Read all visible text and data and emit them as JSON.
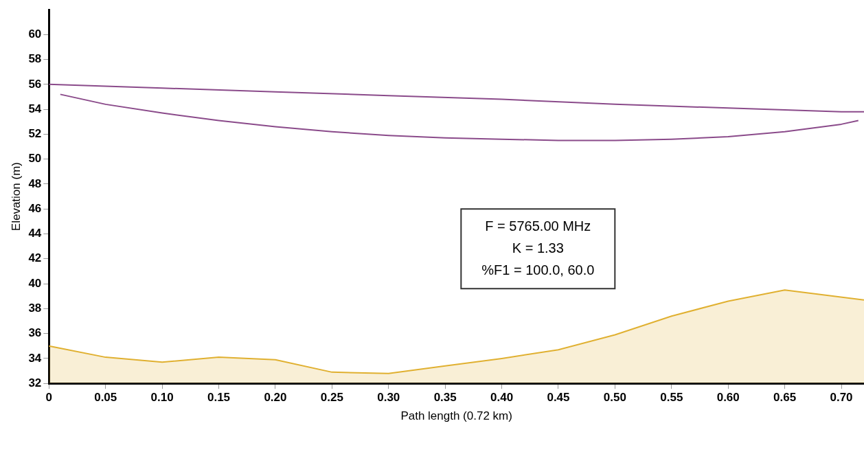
{
  "chart_data": {
    "type": "line",
    "xlabel": "Path length (0.72 km)",
    "ylabel": "Elevation (m)",
    "xlim": [
      0,
      0.72
    ],
    "ylim": [
      32,
      62
    ],
    "xticks": [
      0,
      {
        "value": 0.05,
        "label": "0.05"
      },
      {
        "value": 0.1,
        "label": "0.10"
      },
      {
        "value": 0.15,
        "label": "0.15"
      },
      {
        "value": 0.2,
        "label": "0.20"
      },
      {
        "value": 0.25,
        "label": "0.25"
      },
      {
        "value": 0.3,
        "label": "0.30"
      },
      {
        "value": 0.35,
        "label": "0.35"
      },
      {
        "value": 0.4,
        "label": "0.40"
      },
      {
        "value": 0.45,
        "label": "0.45"
      },
      {
        "value": 0.5,
        "label": "0.50"
      },
      {
        "value": 0.55,
        "label": "0.55"
      },
      {
        "value": 0.6,
        "label": "0.60"
      },
      {
        "value": 0.65,
        "label": "0.65"
      },
      {
        "value": 0.7,
        "label": "0.70"
      }
    ],
    "yticks": [
      32,
      34,
      36,
      38,
      40,
      42,
      44,
      46,
      48,
      50,
      52,
      54,
      56,
      58,
      60
    ],
    "grid": false,
    "legend": false,
    "marker": "none",
    "annotations": [
      "F = 5765.00 MHz",
      "K = 1.33",
      "%F1 = 100.0, 60.0"
    ],
    "series": [
      {
        "type": "line",
        "color": "#8a4a8a",
        "x": [
          0,
          0.1,
          0.2,
          0.3,
          0.4,
          0.5,
          0.6,
          0.7,
          0.72
        ],
        "values": [
          56.0,
          55.7,
          55.4,
          55.1,
          54.8,
          54.4,
          54.1,
          53.8,
          53.8
        ]
      },
      {
        "type": "line",
        "color": "#8a4a8a",
        "x": [
          0.01,
          0.05,
          0.1,
          0.15,
          0.2,
          0.25,
          0.3,
          0.35,
          0.4,
          0.45,
          0.5,
          0.55,
          0.6,
          0.65,
          0.7,
          0.715
        ],
        "values": [
          55.2,
          54.4,
          53.7,
          53.1,
          52.6,
          52.2,
          51.9,
          51.7,
          51.6,
          51.5,
          51.5,
          51.6,
          51.8,
          52.2,
          52.8,
          53.1
        ]
      },
      {
        "type": "area",
        "color": "#e0b030",
        "x": [
          0,
          0.05,
          0.1,
          0.15,
          0.2,
          0.25,
          0.3,
          0.35,
          0.4,
          0.45,
          0.5,
          0.55,
          0.6,
          0.65,
          0.72
        ],
        "values": [
          35.0,
          34.1,
          33.7,
          34.1,
          33.9,
          32.9,
          32.8,
          33.4,
          34.0,
          34.7,
          35.9,
          37.4,
          38.6,
          39.5,
          38.7
        ]
      }
    ]
  }
}
